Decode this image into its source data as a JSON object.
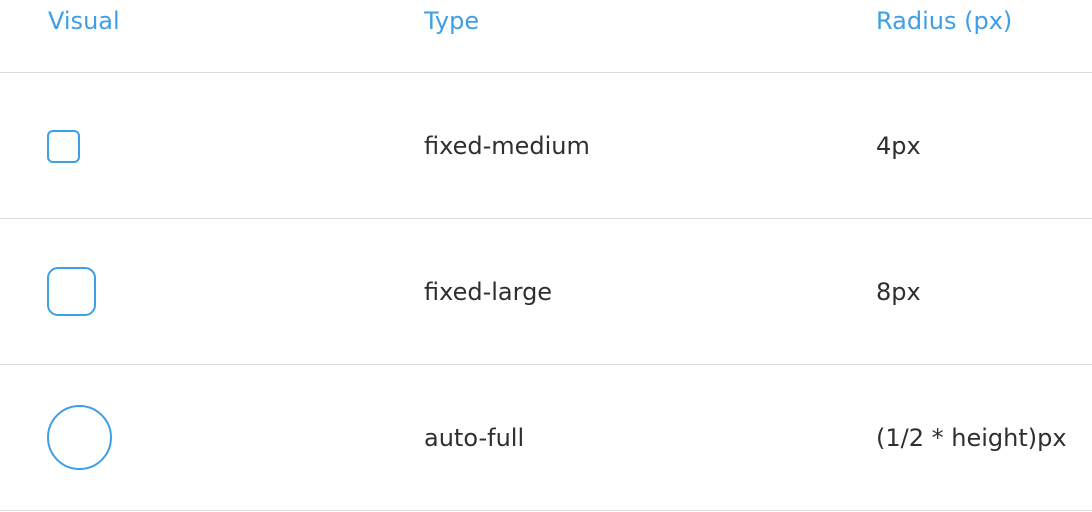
{
  "table": {
    "headers": {
      "visual": "Visual",
      "type": "Type",
      "radius": "Radius (px)"
    },
    "rows": [
      {
        "shape": "rounded-square-medium",
        "type": "fixed-medium",
        "radius": "4px"
      },
      {
        "shape": "rounded-square-large",
        "type": "fixed-large",
        "radius": "8px"
      },
      {
        "shape": "circle",
        "type": "auto-full",
        "radius": "(1/2 * height)px"
      }
    ]
  },
  "colors": {
    "accent": "#3d9fe6",
    "text": "#2f2f2f",
    "divider": "#dcdcdc"
  }
}
